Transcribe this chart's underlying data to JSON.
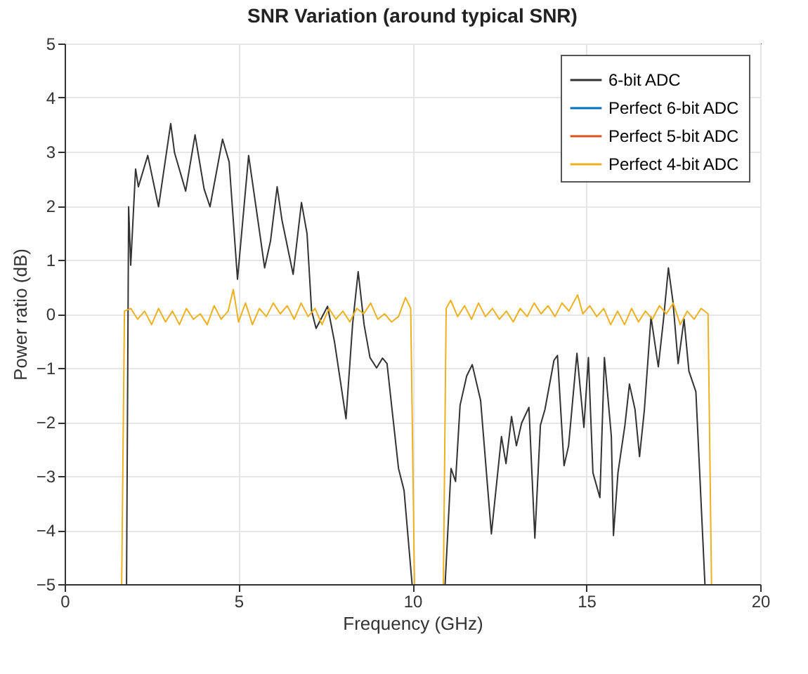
{
  "chart_data": {
    "type": "line",
    "title": "SNR Variation (around typical SNR)",
    "xlabel": "Frequency (GHz)",
    "ylabel": "Power ratio (dB)",
    "xlim": [
      0,
      20
    ],
    "xticks": [
      0,
      5,
      10,
      15,
      20
    ],
    "ylim": [
      -5,
      5
    ],
    "yticks": [
      -5,
      -4,
      -3,
      -2,
      -1,
      0,
      1,
      2,
      3,
      4,
      5
    ],
    "grid": true,
    "legend": "top right",
    "line_style": "solid",
    "marker": "none",
    "series": [
      {
        "name": "6-bit ADC",
        "color": "#333333",
        "x": [
          1.78,
          1.84,
          1.9,
          2.04,
          2.12,
          2.39,
          2.7,
          3.05,
          3.16,
          3.35,
          3.48,
          3.75,
          4.01,
          4.18,
          4.54,
          4.73,
          4.97,
          5.29,
          5.65,
          5.75,
          5.92,
          6.11,
          6.25,
          6.57,
          6.81,
          6.97,
          7.1,
          7.23,
          7.56,
          7.76,
          8.09,
          8.28,
          8.44,
          8.61,
          8.78,
          8.97,
          9.14,
          9.27,
          9.4,
          9.6,
          9.76,
          9.99,
          10.5,
          10.94,
          11.11,
          11.24,
          11.37,
          11.56,
          11.72,
          11.96,
          12.27,
          12.56,
          12.69,
          12.85,
          12.99,
          13.14,
          13.35,
          13.52,
          13.68,
          13.81,
          14.07,
          14.17,
          14.36,
          14.49,
          14.73,
          14.93,
          15.06,
          15.19,
          15.39,
          15.52,
          15.72,
          15.78,
          15.91,
          16.11,
          16.24,
          16.4,
          16.53,
          16.67,
          16.86,
          17.07,
          17.22,
          17.36,
          17.49,
          17.64,
          17.81,
          17.95,
          18.15,
          18.41
        ],
        "values": [
          -5,
          1.98,
          0.9,
          2.68,
          2.35,
          2.93,
          1.98,
          3.52,
          2.98,
          2.56,
          2.27,
          3.31,
          2.31,
          1.98,
          3.23,
          2.81,
          0.64,
          2.93,
          1.31,
          0.85,
          1.35,
          2.35,
          1.73,
          0.73,
          2.06,
          1.48,
          0.06,
          -0.27,
          0.14,
          -0.52,
          -1.94,
          -0.19,
          0.78,
          -0.2,
          -0.81,
          -1.0,
          -0.82,
          -0.92,
          -1.69,
          -2.86,
          -3.27,
          -5,
          null,
          -5,
          -2.86,
          -3.1,
          -1.69,
          -1.15,
          -0.94,
          -1.6,
          -4.07,
          -2.27,
          -2.77,
          -1.9,
          -2.44,
          -2.02,
          -1.73,
          -4.15,
          -2.06,
          -1.77,
          -0.86,
          -0.77,
          -2.81,
          -2.44,
          -0.73,
          -2.1,
          -0.81,
          -2.94,
          -3.4,
          -0.81,
          -2.27,
          -4.1,
          -2.94,
          -2.06,
          -1.3,
          -1.77,
          -2.64,
          -1.77,
          -0.06,
          -0.98,
          -0.1,
          0.85,
          0.23,
          -0.92,
          -0.1,
          -1.06,
          -1.44,
          -5
        ]
      },
      {
        "name": "Perfect 6-bit ADC",
        "color": "#0072bd"
      },
      {
        "name": "Perfect 5-bit ADC",
        "color": "#d95319"
      },
      {
        "name": "Perfect 4-bit ADC",
        "color": "#edb120",
        "x": [
          1.64,
          1.72,
          1.9,
          2.1,
          2.3,
          2.5,
          2.7,
          2.9,
          3.1,
          3.3,
          3.5,
          3.7,
          3.9,
          4.1,
          4.3,
          4.5,
          4.7,
          4.85,
          5.0,
          5.2,
          5.4,
          5.6,
          5.8,
          6.0,
          6.2,
          6.4,
          6.6,
          6.8,
          7.0,
          7.2,
          7.4,
          7.6,
          7.8,
          8.0,
          8.2,
          8.4,
          8.6,
          8.8,
          9.0,
          9.2,
          9.4,
          9.6,
          9.8,
          9.95,
          10.06,
          10.5,
          10.89,
          10.97,
          11.1,
          11.3,
          11.5,
          11.7,
          11.9,
          12.1,
          12.3,
          12.5,
          12.7,
          12.9,
          13.1,
          13.3,
          13.5,
          13.7,
          13.9,
          14.1,
          14.3,
          14.5,
          14.75,
          14.9,
          15.1,
          15.3,
          15.5,
          15.7,
          15.9,
          16.1,
          16.3,
          16.5,
          16.7,
          16.9,
          17.1,
          17.3,
          17.5,
          17.7,
          17.9,
          18.1,
          18.3,
          18.5,
          18.6
        ],
        "values": [
          -5,
          0.05,
          0.1,
          -0.1,
          0.05,
          -0.2,
          0.1,
          -0.15,
          0.05,
          -0.2,
          0.1,
          -0.1,
          0.0,
          -0.2,
          0.15,
          -0.1,
          0.05,
          0.45,
          -0.15,
          0.2,
          -0.2,
          0.1,
          -0.05,
          0.2,
          0.0,
          0.15,
          -0.1,
          0.2,
          -0.05,
          0.1,
          -0.2,
          0.1,
          -0.1,
          0.05,
          -0.15,
          0.1,
          0.0,
          0.2,
          -0.1,
          0.0,
          -0.15,
          -0.05,
          0.3,
          0.1,
          -5,
          null,
          -5,
          0.1,
          0.25,
          -0.05,
          0.15,
          -0.1,
          0.2,
          -0.05,
          0.1,
          -0.1,
          0.05,
          -0.15,
          0.1,
          -0.05,
          0.2,
          0.0,
          0.15,
          -0.05,
          0.2,
          0.05,
          0.35,
          0.0,
          0.15,
          -0.05,
          0.1,
          -0.2,
          0.05,
          -0.2,
          0.1,
          -0.15,
          0.05,
          -0.1,
          0.15,
          0.0,
          0.2,
          -0.2,
          0.05,
          -0.1,
          0.1,
          0.0,
          -5
        ]
      }
    ]
  }
}
